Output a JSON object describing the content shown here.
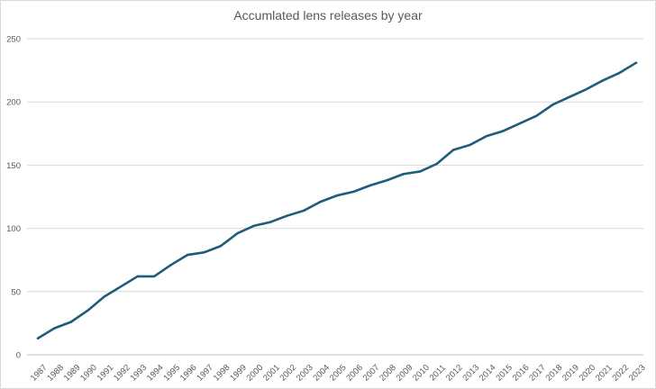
{
  "chart_data": {
    "type": "line",
    "title": "Accumlated lens releases by year",
    "xlabel": "",
    "ylabel": "",
    "ylim": [
      0,
      250
    ],
    "yticks": [
      0,
      50,
      100,
      150,
      200,
      250
    ],
    "grid": true,
    "legend": "none",
    "categories": [
      "1987",
      "1988",
      "1989",
      "1990",
      "1991",
      "1992",
      "1993",
      "1994",
      "1995",
      "1996",
      "1997",
      "1998",
      "1999",
      "2000",
      "2001",
      "2002",
      "2003",
      "2004",
      "2005",
      "2006",
      "2007",
      "2008",
      "2009",
      "2010",
      "2011",
      "2012",
      "2013",
      "2014",
      "2015",
      "2016",
      "2017",
      "2018",
      "2019",
      "2020",
      "2021",
      "2022",
      "2023"
    ],
    "series": [
      {
        "values": [
          13,
          21,
          26,
          35,
          46,
          54,
          62,
          62,
          71,
          79,
          81,
          86,
          96,
          102,
          105,
          110,
          114,
          121,
          126,
          129,
          134,
          138,
          143,
          145,
          151,
          162,
          166,
          173,
          177,
          183,
          189,
          198,
          204,
          210,
          217,
          223,
          231
        ],
        "color": "#1f5c7a"
      }
    ]
  }
}
